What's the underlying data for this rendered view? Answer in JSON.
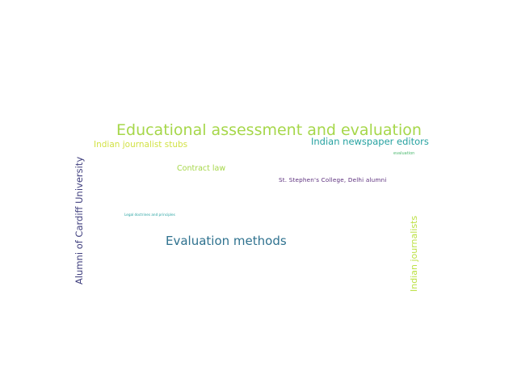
{
  "words": [
    {
      "text": "Educational assessment and evaluation",
      "color": "#a6d74a"
    },
    {
      "text": "Indian newspaper editors",
      "color": "#26a2a1"
    },
    {
      "text": "Indian journalist stubs",
      "color": "#d2e245"
    },
    {
      "text": "evaluation",
      "color": "#4bb86e"
    },
    {
      "text": "Contract law",
      "color": "#a6d74a"
    },
    {
      "text": "St. Stephen's College, Delhi alumni",
      "color": "#5c2f7d"
    },
    {
      "text": "Legal doctrines and principles",
      "color": "#26a2a1"
    },
    {
      "text": "Evaluation methods",
      "color": "#2f728f"
    },
    {
      "text": "Alumni of Cardiff University",
      "color": "#41407f"
    },
    {
      "text": "Indian journalists",
      "color": "#bde145"
    }
  ]
}
